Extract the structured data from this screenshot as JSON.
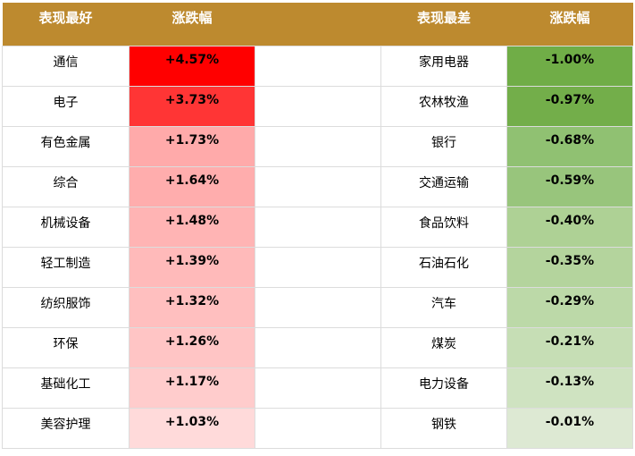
{
  "table": {
    "headers": [
      "表现最好",
      "涨跌幅",
      "表现最差",
      "涨跌幅"
    ],
    "header_color": "#bd8a2f",
    "rows": [
      [
        "通信",
        "+4.57%",
        "家用电器",
        "-1.00%"
      ],
      [
        "电子",
        "+3.73%",
        "农林牧渔",
        "-0.97%"
      ],
      [
        "有色金属",
        "+1.73%",
        "银行",
        "-0.68%"
      ],
      [
        "综合",
        "+1.64%",
        "交通运输",
        "-0.59%"
      ],
      [
        "机械设备",
        "+1.48%",
        "食品饮料",
        "-0.40%"
      ],
      [
        "轻工制造",
        "+1.39%",
        "石油石化",
        "-0.35%"
      ],
      [
        "纺织服饰",
        "+1.32%",
        "汽车",
        "-0.29%"
      ],
      [
        "环保",
        "+1.26%",
        "煤炭",
        "-0.21%"
      ],
      [
        "基础化工",
        "+1.17%",
        "电力设备",
        "-0.13%"
      ],
      [
        "美容护理",
        "+1.03%",
        "钢铁",
        "-0.01%"
      ]
    ],
    "best_colors": [
      "#ff0000",
      "#ff3535",
      "#ffaaaa",
      "#ffadad",
      "#ffb4b4",
      "#ffbaba",
      "#ffbfbf",
      "#ffc5c5",
      "#ffcccc",
      "#ffdada"
    ],
    "worst_colors": [
      "#70ad47",
      "#73ae4a",
      "#90c172",
      "#98c57c",
      "#aed195",
      "#b4d49d",
      "#bcd9a8",
      "#c6deb5",
      "#cfe3c1",
      "#dde9d3"
    ]
  }
}
